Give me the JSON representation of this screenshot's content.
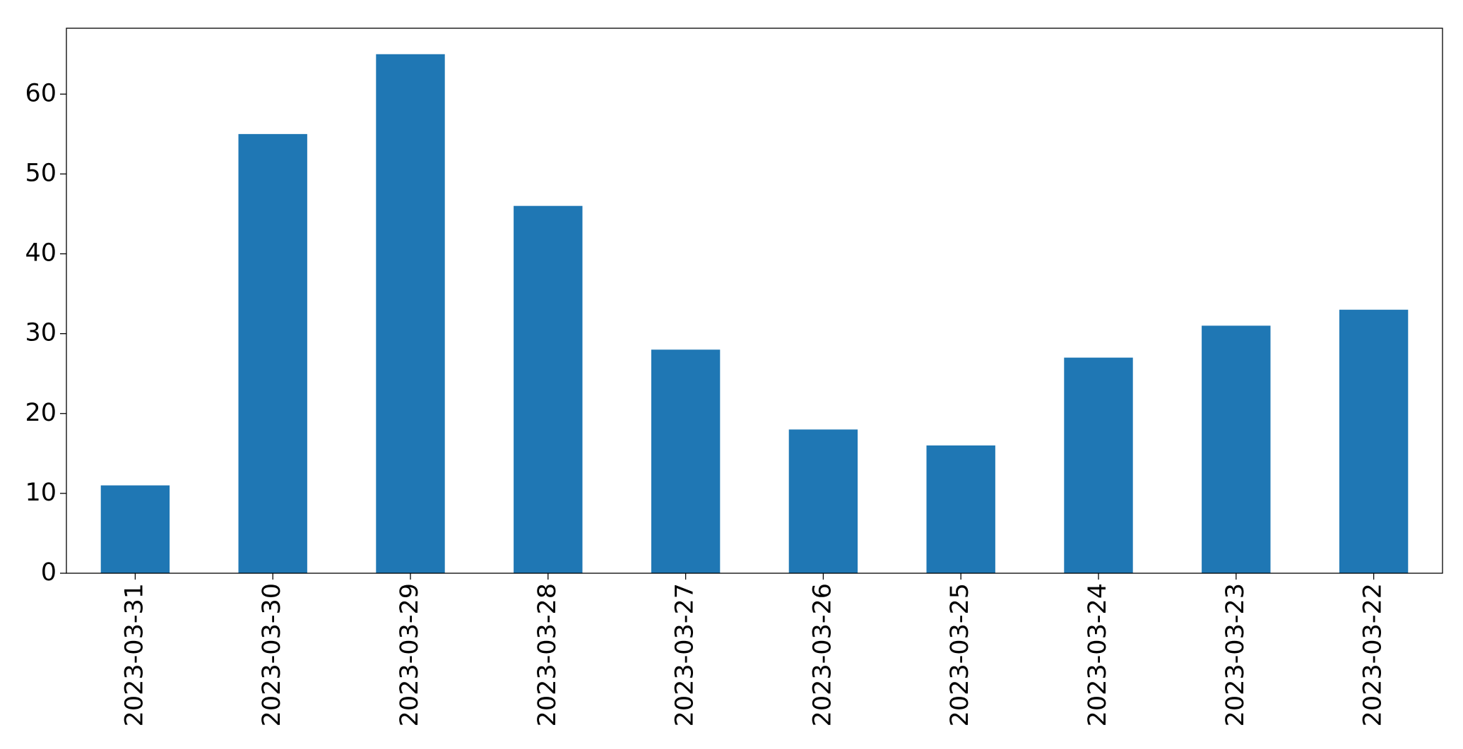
{
  "chart_data": {
    "type": "bar",
    "categories": [
      "2023-03-31",
      "2023-03-30",
      "2023-03-29",
      "2023-03-28",
      "2023-03-27",
      "2023-03-26",
      "2023-03-25",
      "2023-03-24",
      "2023-03-23",
      "2023-03-22"
    ],
    "values": [
      11,
      55,
      65,
      46,
      28,
      18,
      16,
      27,
      31,
      33
    ],
    "color": "#1f77b4",
    "ylim": [
      0,
      68.25
    ],
    "yticks": [
      0,
      10,
      20,
      30,
      40,
      50,
      60
    ],
    "grid": false
  }
}
